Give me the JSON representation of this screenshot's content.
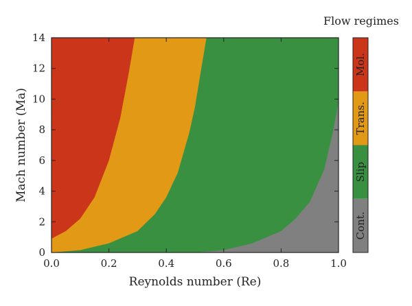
{
  "chart_data": {
    "type": "area",
    "xlabel": "Reynolds number (Re)",
    "ylabel": "Mach number (Ma)",
    "xlim": [
      0.0,
      1.0
    ],
    "ylim": [
      0,
      14
    ],
    "x_ticks": [
      "0.0",
      "0.2",
      "0.4",
      "0.6",
      "0.8",
      "1.0"
    ],
    "y_ticks": [
      "0",
      "2",
      "4",
      "6",
      "8",
      "10",
      "12",
      "14"
    ],
    "grid": false,
    "legend_title": "Flow regimes",
    "legend_placement": "right",
    "regimes": [
      {
        "name": "Cont.",
        "color": "#808080"
      },
      {
        "name": "Slip",
        "color": "#3a9041"
      },
      {
        "name": "Trans.",
        "color": "#e19916"
      },
      {
        "name": "Mol.",
        "color": "#cb3519"
      }
    ],
    "boundaries": [
      {
        "between": [
          "Cont.",
          "Slip"
        ],
        "x": [
          0.5,
          0.6,
          0.7,
          0.8,
          0.85,
          0.9,
          0.95,
          0.98,
          1.0
        ],
        "y": [
          0.0,
          0.15,
          0.6,
          1.4,
          2.2,
          3.3,
          5.4,
          7.8,
          9.8
        ]
      },
      {
        "between": [
          "Slip",
          "Trans."
        ],
        "x": [
          0.0,
          0.1,
          0.2,
          0.3,
          0.36,
          0.4,
          0.44,
          0.48,
          0.5,
          0.52,
          0.54
        ],
        "y": [
          0.0,
          0.15,
          0.6,
          1.4,
          2.5,
          3.6,
          5.2,
          7.8,
          9.5,
          11.8,
          14.0
        ]
      },
      {
        "between": [
          "Trans.",
          "Mol."
        ],
        "x": [
          0.0,
          0.05,
          0.1,
          0.15,
          0.2,
          0.24,
          0.27,
          0.29
        ],
        "y": [
          0.9,
          1.4,
          2.2,
          3.6,
          6.0,
          8.8,
          11.8,
          14.0
        ]
      }
    ]
  }
}
